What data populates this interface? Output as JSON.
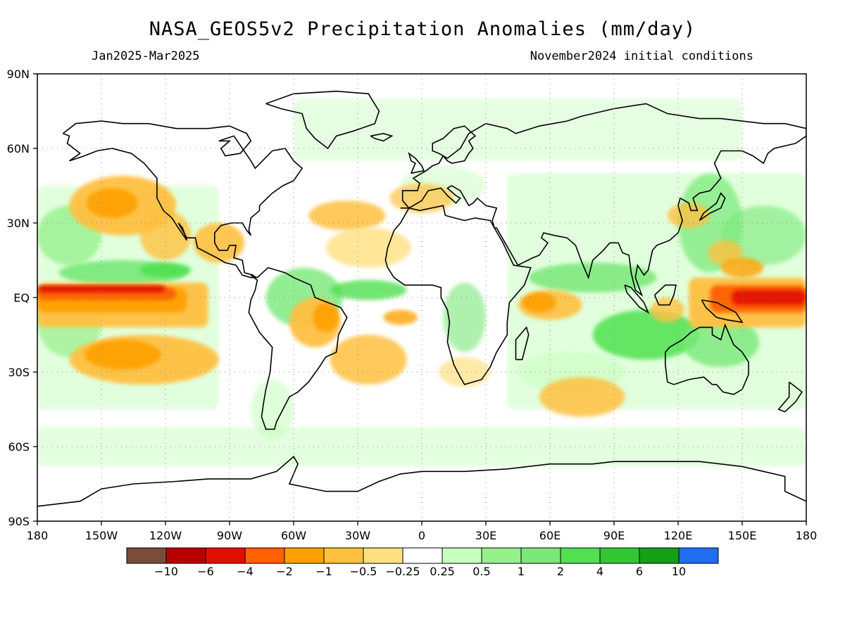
{
  "title": "NASA_GEOS5v2 Precipitation Anomalies (mm/day)",
  "subtitle_left": "Jan2025-Mar2025",
  "subtitle_right": "November2024 initial conditions",
  "lat_ticks": [
    "90N",
    "60N",
    "30N",
    "EQ",
    "30S",
    "60S",
    "90S"
  ],
  "lon_ticks": [
    "180",
    "150W",
    "120W",
    "90W",
    "60W",
    "30W",
    "0",
    "30E",
    "60E",
    "90E",
    "120E",
    "150E",
    "180"
  ],
  "colorbar": {
    "colors": [
      "#7a4c3c",
      "#b80000",
      "#e01000",
      "#ff6000",
      "#ffa000",
      "#ffc040",
      "#ffe080",
      "#ffffff",
      "#c8ffc0",
      "#96f08c",
      "#78e878",
      "#50e050",
      "#32c832",
      "#14a014",
      "#1e6ef0"
    ],
    "labels": [
      "-10",
      "-6",
      "-4",
      "-2",
      "-1",
      "-0.5",
      "-0.25",
      "0.25",
      "0.5",
      "1",
      "2",
      "4",
      "6",
      "10"
    ]
  },
  "map_colors": {
    "dry_strong": "#ff6000",
    "dry_very_strong": "#e01000",
    "dry_moderate": "#ffa000",
    "dry_light": "#ffc040",
    "dry_slight": "#ffe080",
    "wet_slight": "#c8ffc0",
    "wet_light": "#96f08c",
    "wet_moderate": "#78e878",
    "wet_strong": "#50e050",
    "wet_very_strong": "#14a014",
    "coastline": "#000000",
    "grid": "#888888"
  },
  "chart_data": {
    "type": "heatmap",
    "title": "NASA_GEOS5v2 Precipitation Anomalies (mm/day)",
    "subtitle": "Jan2025-Mar2025",
    "annotation": "November2024 initial conditions",
    "x_range_lon": [
      -180,
      180
    ],
    "y_range_lat": [
      -90,
      90
    ],
    "grid": true,
    "legend_placement": "bottom",
    "regions": [
      {
        "lon": -145,
        "lat": 2,
        "anomaly": -4
      },
      {
        "lon": -120,
        "lat": 4,
        "anomaly": -4
      },
      {
        "lon": -100,
        "lat": 4,
        "anomaly": -2
      },
      {
        "lon": -140,
        "lat": -6,
        "anomaly": -2
      },
      {
        "lon": -130,
        "lat": 10,
        "anomaly": 1
      },
      {
        "lon": -140,
        "lat": 35,
        "anomaly": -1
      },
      {
        "lon": -125,
        "lat": -25,
        "anomaly": -1
      },
      {
        "lon": -90,
        "lat": 25,
        "anomaly": -1
      },
      {
        "lon": -50,
        "lat": -10,
        "anomaly": -1
      },
      {
        "lon": 10,
        "lat": -5,
        "anomaly": -1
      },
      {
        "lon": 55,
        "lat": -5,
        "anomaly": -1
      },
      {
        "lon": 75,
        "lat": -40,
        "anomaly": -0.5
      },
      {
        "lon": 75,
        "lat": 8,
        "anomaly": 1
      },
      {
        "lon": 100,
        "lat": -15,
        "anomaly": 2
      },
      {
        "lon": 145,
        "lat": 2,
        "anomaly": -4
      },
      {
        "lon": 170,
        "lat": 0,
        "anomaly": -6
      },
      {
        "lon": 0,
        "lat": -60,
        "anomaly": 0.5
      },
      {
        "lon": 50,
        "lat": 60,
        "anomaly": 0.5
      },
      {
        "lon": 145,
        "lat": 45,
        "anomaly": 0.5
      },
      {
        "lon": -20,
        "lat": 5,
        "anomaly": 1
      }
    ]
  }
}
